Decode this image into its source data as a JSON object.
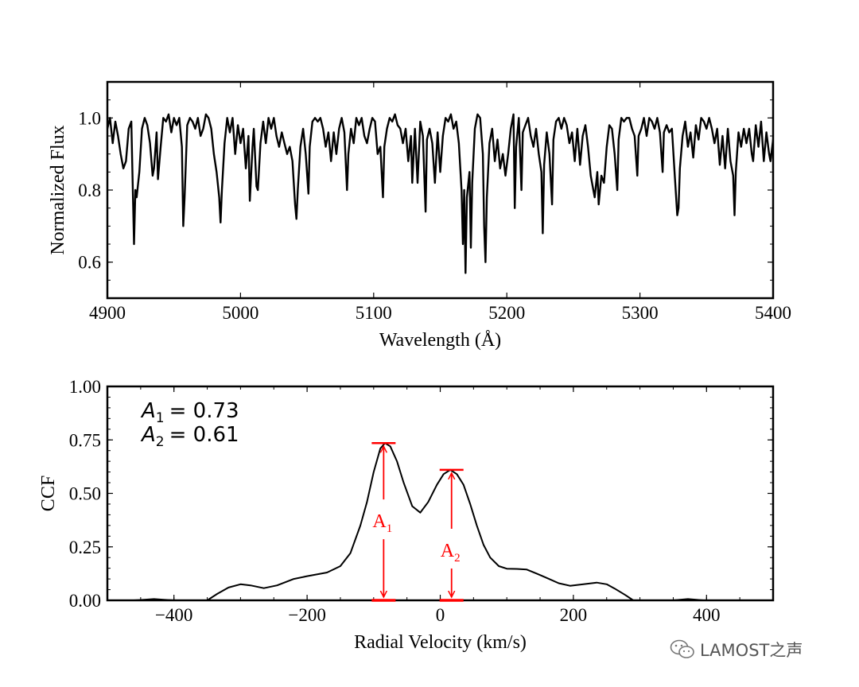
{
  "chart_data": [
    {
      "type": "line",
      "xlabel": "Wavelength (Å)",
      "ylabel": "Normalized Flux",
      "xlim": [
        4900,
        5400
      ],
      "ylim": [
        0.5,
        1.1
      ],
      "xticks": [
        4900,
        5000,
        5100,
        5200,
        5300,
        5400
      ],
      "xtick_labels": [
        "4900",
        "5000",
        "5100",
        "5200",
        "5300",
        "5400"
      ],
      "yticks": [
        0.6,
        0.8,
        1.0
      ],
      "ytick_labels": [
        "0.6",
        "0.8",
        "1.0"
      ],
      "grid": false,
      "line_color": "#000000",
      "points": [
        [
          4900,
          0.97
        ],
        [
          4902,
          1.0
        ],
        [
          4904,
          0.93
        ],
        [
          4906,
          0.99
        ],
        [
          4908,
          0.95
        ],
        [
          4910,
          0.9
        ],
        [
          4912,
          0.86
        ],
        [
          4914,
          0.88
        ],
        [
          4916,
          0.97
        ],
        [
          4918,
          0.99
        ],
        [
          4919,
          0.82
        ],
        [
          4920,
          0.65
        ],
        [
          4921,
          0.8
        ],
        [
          4922,
          0.78
        ],
        [
          4924,
          0.85
        ],
        [
          4926,
          0.97
        ],
        [
          4928,
          1.0
        ],
        [
          4930,
          0.98
        ],
        [
          4932,
          0.93
        ],
        [
          4934,
          0.84
        ],
        [
          4935,
          0.86
        ],
        [
          4937,
          0.96
        ],
        [
          4938,
          0.83
        ],
        [
          4940,
          0.92
        ],
        [
          4942,
          1.0
        ],
        [
          4944,
          0.99
        ],
        [
          4946,
          1.01
        ],
        [
          4948,
          0.96
        ],
        [
          4950,
          1.0
        ],
        [
          4952,
          0.98
        ],
        [
          4954,
          1.0
        ],
        [
          4956,
          0.92
        ],
        [
          4957,
          0.7
        ],
        [
          4958,
          0.78
        ],
        [
          4960,
          0.98
        ],
        [
          4962,
          1.0
        ],
        [
          4964,
          0.99
        ],
        [
          4966,
          0.97
        ],
        [
          4968,
          1.0
        ],
        [
          4970,
          0.95
        ],
        [
          4972,
          0.97
        ],
        [
          4974,
          1.01
        ],
        [
          4976,
          1.0
        ],
        [
          4978,
          0.97
        ],
        [
          4980,
          0.9
        ],
        [
          4982,
          0.85
        ],
        [
          4984,
          0.78
        ],
        [
          4985,
          0.71
        ],
        [
          4986,
          0.8
        ],
        [
          4988,
          0.93
        ],
        [
          4990,
          1.0
        ],
        [
          4992,
          0.96
        ],
        [
          4994,
          1.0
        ],
        [
          4996,
          0.9
        ],
        [
          4998,
          0.98
        ],
        [
          5000,
          0.93
        ],
        [
          5002,
          0.97
        ],
        [
          5004,
          0.86
        ],
        [
          5006,
          0.95
        ],
        [
          5007,
          0.77
        ],
        [
          5009,
          0.92
        ],
        [
          5010,
          0.97
        ],
        [
          5012,
          0.81
        ],
        [
          5013,
          0.8
        ],
        [
          5015,
          0.93
        ],
        [
          5017,
          0.99
        ],
        [
          5019,
          0.93
        ],
        [
          5021,
          1.0
        ],
        [
          5023,
          0.97
        ],
        [
          5025,
          1.0
        ],
        [
          5027,
          0.95
        ],
        [
          5029,
          0.92
        ],
        [
          5031,
          0.96
        ],
        [
          5033,
          0.93
        ],
        [
          5035,
          0.9
        ],
        [
          5037,
          0.92
        ],
        [
          5039,
          0.88
        ],
        [
          5041,
          0.76
        ],
        [
          5042,
          0.72
        ],
        [
          5043,
          0.8
        ],
        [
          5045,
          0.92
        ],
        [
          5047,
          0.97
        ],
        [
          5049,
          0.9
        ],
        [
          5051,
          0.79
        ],
        [
          5052,
          0.92
        ],
        [
          5054,
          0.99
        ],
        [
          5056,
          1.0
        ],
        [
          5058,
          0.99
        ],
        [
          5060,
          1.0
        ],
        [
          5062,
          0.97
        ],
        [
          5064,
          0.92
        ],
        [
          5066,
          0.96
        ],
        [
          5068,
          0.88
        ],
        [
          5070,
          0.96
        ],
        [
          5072,
          0.9
        ],
        [
          5074,
          0.97
        ],
        [
          5076,
          1.0
        ],
        [
          5078,
          0.96
        ],
        [
          5080,
          0.8
        ],
        [
          5081,
          0.9
        ],
        [
          5083,
          0.97
        ],
        [
          5085,
          0.93
        ],
        [
          5087,
          1.0
        ],
        [
          5089,
          0.98
        ],
        [
          5091,
          1.0
        ],
        [
          5093,
          0.95
        ],
        [
          5095,
          0.93
        ],
        [
          5097,
          0.97
        ],
        [
          5099,
          1.0
        ],
        [
          5101,
          0.99
        ],
        [
          5103,
          0.9
        ],
        [
          5105,
          0.92
        ],
        [
          5107,
          0.78
        ],
        [
          5108,
          0.92
        ],
        [
          5110,
          0.97
        ],
        [
          5112,
          1.0
        ],
        [
          5114,
          0.99
        ],
        [
          5116,
          1.01
        ],
        [
          5118,
          0.98
        ],
        [
          5120,
          0.97
        ],
        [
          5122,
          0.93
        ],
        [
          5124,
          0.97
        ],
        [
          5126,
          0.88
        ],
        [
          5128,
          0.95
        ],
        [
          5129,
          0.82
        ],
        [
          5131,
          0.97
        ],
        [
          5133,
          0.82
        ],
        [
          5135,
          0.99
        ],
        [
          5137,
          0.95
        ],
        [
          5139,
          0.74
        ],
        [
          5140,
          0.94
        ],
        [
          5142,
          0.97
        ],
        [
          5144,
          0.93
        ],
        [
          5146,
          0.82
        ],
        [
          5148,
          0.96
        ],
        [
          5150,
          0.85
        ],
        [
          5152,
          0.95
        ],
        [
          5154,
          1.0
        ],
        [
          5156,
          0.99
        ],
        [
          5158,
          1.01
        ],
        [
          5160,
          0.97
        ],
        [
          5162,
          0.99
        ],
        [
          5164,
          0.93
        ],
        [
          5166,
          0.8
        ],
        [
          5167,
          0.65
        ],
        [
          5168,
          0.8
        ],
        [
          5169,
          0.57
        ],
        [
          5170,
          0.78
        ],
        [
          5172,
          0.85
        ],
        [
          5173,
          0.64
        ],
        [
          5174,
          0.82
        ],
        [
          5176,
          0.97
        ],
        [
          5178,
          1.01
        ],
        [
          5180,
          1.0
        ],
        [
          5182,
          0.9
        ],
        [
          5183,
          0.7
        ],
        [
          5184,
          0.6
        ],
        [
          5185,
          0.78
        ],
        [
          5187,
          0.93
        ],
        [
          5189,
          0.97
        ],
        [
          5191,
          0.88
        ],
        [
          5193,
          0.94
        ],
        [
          5195,
          0.86
        ],
        [
          5197,
          0.9
        ],
        [
          5199,
          0.84
        ],
        [
          5201,
          0.9
        ],
        [
          5203,
          0.97
        ],
        [
          5205,
          1.01
        ],
        [
          5206,
          0.75
        ],
        [
          5207,
          0.92
        ],
        [
          5209,
          1.0
        ],
        [
          5211,
          0.8
        ],
        [
          5212,
          0.96
        ],
        [
          5214,
          0.98
        ],
        [
          5216,
          1.0
        ],
        [
          5218,
          0.95
        ],
        [
          5220,
          0.92
        ],
        [
          5222,
          0.97
        ],
        [
          5224,
          0.9
        ],
        [
          5226,
          0.85
        ],
        [
          5227,
          0.68
        ],
        [
          5228,
          0.87
        ],
        [
          5230,
          0.96
        ],
        [
          5232,
          0.9
        ],
        [
          5234,
          0.76
        ],
        [
          5235,
          0.94
        ],
        [
          5237,
          0.99
        ],
        [
          5239,
          1.0
        ],
        [
          5241,
          0.97
        ],
        [
          5243,
          1.0
        ],
        [
          5245,
          0.98
        ],
        [
          5247,
          0.93
        ],
        [
          5249,
          0.96
        ],
        [
          5251,
          0.88
        ],
        [
          5253,
          0.97
        ],
        [
          5255,
          0.87
        ],
        [
          5257,
          0.95
        ],
        [
          5259,
          0.98
        ],
        [
          5261,
          0.92
        ],
        [
          5263,
          0.84
        ],
        [
          5265,
          0.8
        ],
        [
          5266,
          0.78
        ],
        [
          5268,
          0.85
        ],
        [
          5269,
          0.76
        ],
        [
          5271,
          0.84
        ],
        [
          5273,
          0.82
        ],
        [
          5275,
          0.92
        ],
        [
          5277,
          0.98
        ],
        [
          5279,
          0.97
        ],
        [
          5281,
          0.9
        ],
        [
          5283,
          0.8
        ],
        [
          5284,
          0.94
        ],
        [
          5286,
          1.0
        ],
        [
          5288,
          0.99
        ],
        [
          5290,
          1.0
        ],
        [
          5292,
          1.0
        ],
        [
          5294,
          0.97
        ],
        [
          5296,
          0.95
        ],
        [
          5298,
          0.84
        ],
        [
          5299,
          0.95
        ],
        [
          5301,
          0.97
        ],
        [
          5303,
          1.0
        ],
        [
          5305,
          0.95
        ],
        [
          5307,
          1.0
        ],
        [
          5309,
          0.99
        ],
        [
          5311,
          0.97
        ],
        [
          5313,
          1.0
        ],
        [
          5315,
          0.96
        ],
        [
          5317,
          0.85
        ],
        [
          5318,
          0.96
        ],
        [
          5320,
          0.98
        ],
        [
          5322,
          0.96
        ],
        [
          5324,
          0.97
        ],
        [
          5326,
          0.85
        ],
        [
          5328,
          0.73
        ],
        [
          5329,
          0.75
        ],
        [
          5330,
          0.86
        ],
        [
          5332,
          0.95
        ],
        [
          5334,
          0.99
        ],
        [
          5336,
          0.92
        ],
        [
          5338,
          0.96
        ],
        [
          5340,
          0.89
        ],
        [
          5342,
          0.98
        ],
        [
          5344,
          0.94
        ],
        [
          5346,
          1.0
        ],
        [
          5348,
          0.99
        ],
        [
          5350,
          0.97
        ],
        [
          5352,
          1.0
        ],
        [
          5354,
          0.97
        ],
        [
          5356,
          0.93
        ],
        [
          5358,
          0.97
        ],
        [
          5360,
          0.87
        ],
        [
          5362,
          0.95
        ],
        [
          5364,
          0.86
        ],
        [
          5366,
          0.97
        ],
        [
          5368,
          0.88
        ],
        [
          5370,
          0.84
        ],
        [
          5371,
          0.73
        ],
        [
          5372,
          0.85
        ],
        [
          5374,
          0.96
        ],
        [
          5376,
          0.92
        ],
        [
          5378,
          0.97
        ],
        [
          5380,
          0.93
        ],
        [
          5382,
          0.97
        ],
        [
          5384,
          0.9
        ],
        [
          5385,
          0.88
        ],
        [
          5387,
          0.98
        ],
        [
          5389,
          0.92
        ],
        [
          5391,
          0.99
        ],
        [
          5393,
          0.88
        ],
        [
          5395,
          0.96
        ],
        [
          5397,
          0.9
        ],
        [
          5398,
          0.88
        ],
        [
          5400,
          0.94
        ]
      ]
    },
    {
      "type": "line",
      "xlabel": "Radial Velocity (km/s)",
      "ylabel": "CCF",
      "xlim": [
        -500,
        500
      ],
      "ylim": [
        0,
        1
      ],
      "xticks": [
        -400,
        -200,
        0,
        200,
        400
      ],
      "xtick_labels": [
        "−400",
        "−200",
        "0",
        "200",
        "400"
      ],
      "yticks": [
        0,
        0.25,
        0.5,
        0.75,
        1.0
      ],
      "ytick_labels": [
        "0.00",
        "0.25",
        "0.50",
        "0.75",
        "1.00"
      ],
      "grid": false,
      "line_color": "#000000",
      "points": [
        [
          -460,
          0
        ],
        [
          -445,
          0.003
        ],
        [
          -430,
          0.006
        ],
        [
          -415,
          0.003
        ],
        [
          -400,
          0
        ],
        [
          -350,
          0
        ],
        [
          -335,
          0.03
        ],
        [
          -318,
          0.06
        ],
        [
          -300,
          0.075
        ],
        [
          -285,
          0.07
        ],
        [
          -265,
          0.057
        ],
        [
          -245,
          0.07
        ],
        [
          -220,
          0.1
        ],
        [
          -200,
          0.113
        ],
        [
          -170,
          0.13
        ],
        [
          -150,
          0.16
        ],
        [
          -135,
          0.22
        ],
        [
          -120,
          0.35
        ],
        [
          -110,
          0.46
        ],
        [
          -100,
          0.6
        ],
        [
          -90,
          0.71
        ],
        [
          -83,
          0.735
        ],
        [
          -75,
          0.72
        ],
        [
          -65,
          0.65
        ],
        [
          -55,
          0.55
        ],
        [
          -42,
          0.44
        ],
        [
          -30,
          0.41
        ],
        [
          -18,
          0.46
        ],
        [
          -5,
          0.54
        ],
        [
          5,
          0.59
        ],
        [
          15,
          0.61
        ],
        [
          25,
          0.59
        ],
        [
          35,
          0.54
        ],
        [
          45,
          0.45
        ],
        [
          55,
          0.35
        ],
        [
          65,
          0.26
        ],
        [
          75,
          0.2
        ],
        [
          88,
          0.16
        ],
        [
          100,
          0.148
        ],
        [
          115,
          0.147
        ],
        [
          130,
          0.144
        ],
        [
          145,
          0.125
        ],
        [
          160,
          0.105
        ],
        [
          178,
          0.08
        ],
        [
          195,
          0.068
        ],
        [
          215,
          0.075
        ],
        [
          235,
          0.083
        ],
        [
          250,
          0.075
        ],
        [
          262,
          0.055
        ],
        [
          278,
          0.025
        ],
        [
          290,
          0
        ],
        [
          350,
          0
        ],
        [
          360,
          0.003
        ],
        [
          372,
          0.006
        ],
        [
          385,
          0.003
        ],
        [
          395,
          0
        ],
        [
          500,
          0
        ]
      ],
      "annotations": {
        "text_lines": [
          {
            "symbol": "A",
            "subscript": "1",
            "value": "= 0.73"
          },
          {
            "symbol": "A",
            "subscript": "2",
            "value": "= 0.61"
          }
        ],
        "arrows": [
          {
            "label": "A",
            "subscript": "1",
            "x": -85,
            "from": 0,
            "to": 0.735
          },
          {
            "label": "A",
            "subscript": "2",
            "x": 17,
            "from": 0,
            "to": 0.61
          }
        ],
        "color": "#ff0000"
      }
    }
  ],
  "watermark": {
    "text": "LAMOST之声",
    "icon": "wechat-icon"
  }
}
